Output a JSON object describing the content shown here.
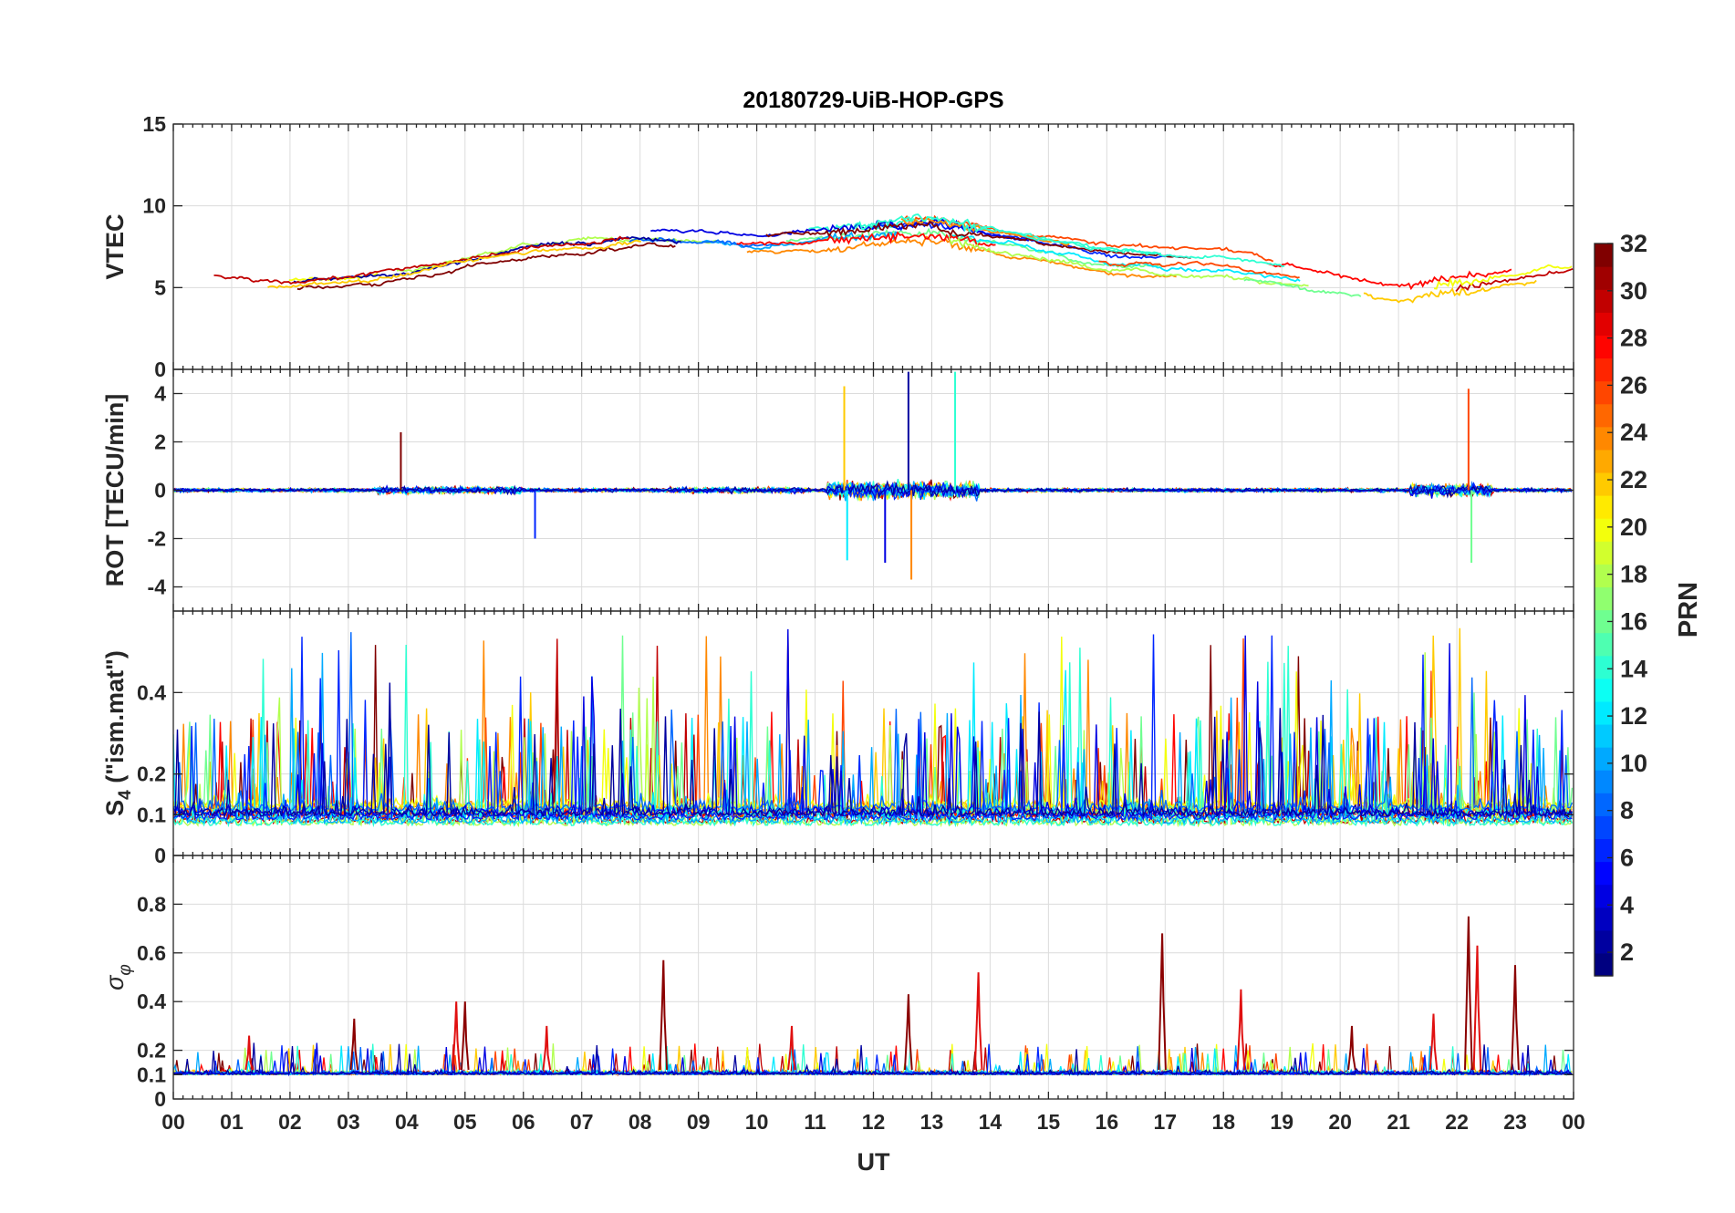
{
  "chart_data": {
    "type": "line",
    "title": "20180729-UiB-HOP-GPS",
    "xlabel": "UT",
    "x_range": [
      0,
      24
    ],
    "x_tick_labels": [
      "00",
      "01",
      "02",
      "03",
      "04",
      "05",
      "06",
      "07",
      "08",
      "09",
      "10",
      "11",
      "12",
      "13",
      "14",
      "15",
      "16",
      "17",
      "18",
      "19",
      "20",
      "21",
      "22",
      "23",
      "00"
    ],
    "panels": [
      {
        "id": "vtec",
        "ylabel": "VTEC",
        "ylim": [
          0,
          15
        ],
        "yticks": [
          0,
          5,
          10,
          15
        ],
        "ytick_labels": [
          "0",
          "5",
          "10",
          "15"
        ],
        "series_description": "VTEC per PRN, ~5-10 TECU, peak near 12-13 UT",
        "profile": [
          [
            0,
            5.8
          ],
          [
            2,
            5.6
          ],
          [
            4,
            6.3
          ],
          [
            6,
            7.6
          ],
          [
            8,
            8.3
          ],
          [
            10,
            8.0
          ],
          [
            12,
            8.4
          ],
          [
            13,
            8.6
          ],
          [
            14,
            8.0
          ],
          [
            16,
            6.8
          ],
          [
            18,
            6.5
          ],
          [
            20,
            5.4
          ],
          [
            21,
            4.6
          ],
          [
            22,
            5.2
          ],
          [
            24,
            6.2
          ]
        ]
      },
      {
        "id": "rot",
        "ylabel": "ROT [TECU/min]",
        "ylim": [
          -5,
          5
        ],
        "yticks": [
          -4,
          -2,
          0,
          2,
          4
        ],
        "ytick_labels": [
          "-4",
          "-2",
          "0",
          "2",
          "4"
        ],
        "series_description": "Rate of TEC, large spikes 11.5-13.5 UT (max ~4.9, min ~-3.7) and 21.5-22.5 UT",
        "spikes": [
          [
            3.9,
            2.4
          ],
          [
            11.5,
            4.3
          ],
          [
            11.55,
            -2.9
          ],
          [
            12.6,
            4.9
          ],
          [
            12.65,
            -3.7
          ],
          [
            13.4,
            4.9
          ],
          [
            12.2,
            -3.0
          ],
          [
            22.2,
            4.2
          ],
          [
            22.25,
            -3.0
          ],
          [
            6.2,
            -2.0
          ]
        ]
      },
      {
        "id": "s4",
        "ylabel_main": "S",
        "ylabel_sub": "4",
        "ylabel_suffix": " (\"ism.mat\")",
        "ylim": [
          0,
          0.6
        ],
        "yticks": [
          0,
          0.1,
          0.2,
          0.4
        ],
        "ytick_labels": [
          "0",
          "0.1",
          "0.2",
          "0.4"
        ],
        "series_description": "S4 per PRN, baseline 0.05-0.1, frequent spikes to 0.3-0.6"
      },
      {
        "id": "sigma_phi",
        "ylabel_main": "σ",
        "ylabel_sub": "φ",
        "ylim": [
          0,
          1
        ],
        "yticks": [
          0,
          0.1,
          0.2,
          0.4,
          0.6,
          0.8
        ],
        "ytick_labels": [
          "0",
          "0.1",
          "0.2",
          "0.4",
          "0.6",
          "0.8"
        ],
        "series_description": "Phase scintillation, baseline ~0.1, spikes ~0.4 at 4.9 UT, 0.57 at 8.4 UT, 0.5 at 13.8 UT, 0.68 at 17 UT, 0.75 at 22.2 UT",
        "spikes": [
          [
            1.3,
            0.26
          ],
          [
            3.1,
            0.33
          ],
          [
            4.85,
            0.4
          ],
          [
            5.0,
            0.4
          ],
          [
            6.4,
            0.3
          ],
          [
            8.4,
            0.57
          ],
          [
            10.6,
            0.3
          ],
          [
            12.6,
            0.43
          ],
          [
            13.8,
            0.52
          ],
          [
            16.95,
            0.68
          ],
          [
            18.3,
            0.45
          ],
          [
            20.2,
            0.3
          ],
          [
            21.6,
            0.35
          ],
          [
            22.2,
            0.75
          ],
          [
            22.35,
            0.63
          ],
          [
            23.0,
            0.55
          ]
        ]
      }
    ],
    "colorbar": {
      "label": "PRN",
      "range": [
        1,
        32
      ],
      "ticks": [
        2,
        4,
        6,
        8,
        10,
        12,
        14,
        16,
        18,
        20,
        22,
        24,
        26,
        28,
        30,
        32
      ],
      "tick_labels": [
        "2",
        "4",
        "6",
        "8",
        "10",
        "12",
        "14",
        "16",
        "18",
        "20",
        "22",
        "24",
        "26",
        "28",
        "30",
        "32"
      ],
      "colormap": "jet"
    }
  }
}
